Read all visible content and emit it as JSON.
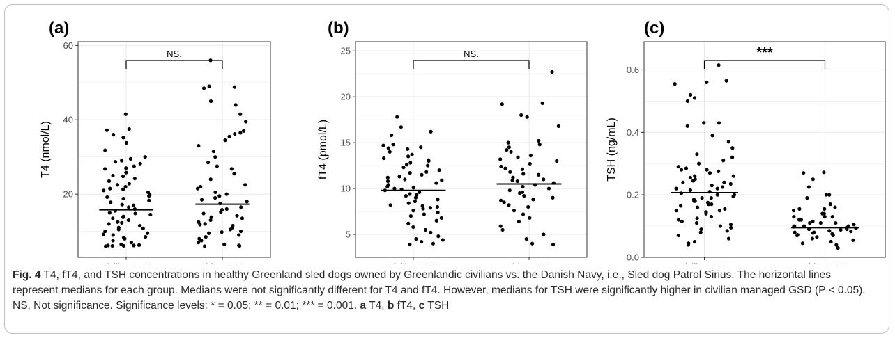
{
  "chart_data": [
    {
      "type": "scatter",
      "panel_label": "(a)",
      "ylabel": "T4 (nmol/L)",
      "categories": [
        "Civilian GSD",
        "Sirius GSD"
      ],
      "ylim": [
        3,
        61
      ],
      "yticks": [
        20,
        40,
        60
      ],
      "grid": true,
      "medians": [
        15.8,
        17.3
      ],
      "significance": "NS.",
      "series": [
        {
          "values": [
            41.5,
            37.5,
            37.2,
            36.0,
            35.2,
            33.8,
            31.8,
            30.0,
            29.5,
            29.0,
            28.7,
            28.2,
            27.5,
            26.8,
            25.8,
            25.0,
            24.2,
            23.5,
            22.8,
            22.0,
            21.5,
            21.0,
            20.5,
            19.8,
            19.2,
            18.8,
            18.3,
            17.8,
            17.2,
            16.5,
            16.0,
            15.5,
            15.0,
            14.5,
            14.0,
            13.5,
            13.0,
            12.5,
            12.0,
            11.5,
            11.0,
            10.5,
            10.0,
            9.5,
            9.0,
            8.5,
            8.0,
            7.5,
            7.0,
            6.5,
            6.3,
            6.2,
            6.2,
            6.1,
            6.1,
            6.0,
            9.2,
            12.3,
            14.8,
            17.0,
            19.5,
            22.5,
            24.8,
            27.0,
            13.8,
            10.8,
            8.3,
            21.3
          ]
        },
        {
          "values": [
            56.0,
            49.0,
            48.8,
            48.5,
            45.0,
            44.0,
            41.5,
            39.5,
            37.0,
            36.5,
            36.2,
            35.5,
            34.5,
            33.0,
            31.5,
            30.0,
            28.5,
            27.5,
            26.8,
            25.5,
            24.0,
            22.5,
            21.5,
            20.5,
            20.0,
            19.5,
            18.5,
            18.0,
            17.5,
            16.5,
            16.0,
            15.2,
            14.8,
            14.2,
            13.5,
            13.0,
            12.5,
            12.0,
            11.5,
            11.0,
            10.5,
            10.0,
            9.5,
            9.0,
            8.5,
            8.0,
            7.5,
            7.0,
            6.5,
            6.2,
            6.1,
            6.0,
            15.8,
            11.8,
            13.8,
            9.8,
            22.0,
            19.0
          ]
        }
      ]
    },
    {
      "type": "scatter",
      "panel_label": "(b)",
      "ylabel": "fT4 (pmol/L)",
      "categories": [
        "Civilian GSD",
        "Sirius GSD"
      ],
      "ylim": [
        2.5,
        26
      ],
      "yticks": [
        5,
        10,
        15,
        20,
        25
      ],
      "grid": true,
      "medians": [
        9.8,
        10.5
      ],
      "significance": "NS.",
      "series": [
        {
          "values": [
            17.8,
            16.7,
            16.2,
            15.8,
            14.8,
            14.7,
            14.5,
            14.4,
            14.3,
            14.0,
            13.7,
            13.5,
            13.3,
            13.0,
            12.8,
            12.5,
            12.3,
            12.0,
            11.8,
            11.5,
            11.3,
            11.0,
            10.8,
            10.6,
            10.4,
            10.2,
            10.0,
            9.9,
            9.8,
            9.6,
            9.4,
            9.2,
            9.0,
            8.8,
            8.6,
            8.4,
            8.2,
            8.0,
            7.8,
            7.6,
            7.4,
            7.2,
            7.0,
            6.8,
            6.5,
            6.2,
            5.8,
            5.5,
            5.2,
            4.8,
            4.5,
            4.4,
            4.2,
            4.0,
            3.9,
            11.2,
            10.9,
            9.3,
            8.1,
            12.6,
            13.1,
            7.9,
            10.1,
            11.7
          ]
        },
        {
          "values": [
            22.7,
            19.3,
            19.2,
            18.0,
            17.8,
            16.8,
            15.2,
            15.0,
            14.8,
            14.5,
            14.0,
            13.6,
            13.4,
            13.2,
            13.0,
            12.7,
            12.4,
            12.1,
            11.8,
            11.5,
            11.2,
            11.0,
            10.8,
            10.6,
            10.4,
            10.2,
            10.0,
            9.8,
            9.5,
            9.2,
            9.0,
            8.8,
            8.5,
            8.2,
            8.0,
            7.6,
            7.2,
            6.8,
            6.4,
            5.9,
            5.5,
            5.0,
            4.5,
            4.0,
            3.9,
            12.2,
            11.6,
            10.9,
            9.6,
            8.7,
            14.2
          ]
        }
      ]
    },
    {
      "type": "scatter",
      "panel_label": "(c)",
      "ylabel": "TSH (ng/mL)",
      "categories": [
        "Civilian GSD",
        "Sirius GSD"
      ],
      "ylim": [
        0,
        0.69
      ],
      "yticks": [
        0.0,
        0.2,
        0.4,
        0.6
      ],
      "tick_labels": [
        "0.0",
        "0.2",
        "0.4",
        "0.6"
      ],
      "grid": true,
      "medians": [
        0.207,
        0.095
      ],
      "significance": "***",
      "series": [
        {
          "values": [
            0.615,
            0.565,
            0.555,
            0.56,
            0.52,
            0.51,
            0.5,
            0.43,
            0.43,
            0.42,
            0.39,
            0.37,
            0.35,
            0.33,
            0.32,
            0.31,
            0.3,
            0.29,
            0.285,
            0.28,
            0.275,
            0.27,
            0.26,
            0.255,
            0.25,
            0.245,
            0.24,
            0.235,
            0.23,
            0.225,
            0.22,
            0.215,
            0.21,
            0.205,
            0.2,
            0.195,
            0.19,
            0.185,
            0.18,
            0.175,
            0.17,
            0.165,
            0.16,
            0.155,
            0.15,
            0.145,
            0.14,
            0.13,
            0.125,
            0.12,
            0.115,
            0.11,
            0.105,
            0.1,
            0.095,
            0.09,
            0.085,
            0.08,
            0.07,
            0.06,
            0.05,
            0.045,
            0.04,
            0.22,
            0.18,
            0.26,
            0.2,
            0.24,
            0.17,
            0.28,
            0.15,
            0.19
          ]
        },
        {
          "values": [
            0.27,
            0.272,
            0.25,
            0.225,
            0.2,
            0.2,
            0.19,
            0.17,
            0.16,
            0.155,
            0.155,
            0.15,
            0.14,
            0.14,
            0.13,
            0.13,
            0.12,
            0.12,
            0.115,
            0.11,
            0.11,
            0.105,
            0.1,
            0.1,
            0.098,
            0.095,
            0.093,
            0.09,
            0.088,
            0.085,
            0.083,
            0.08,
            0.078,
            0.075,
            0.072,
            0.07,
            0.065,
            0.06,
            0.055,
            0.05,
            0.045,
            0.04,
            0.03,
            0.1,
            0.09,
            0.12,
            0.08,
            0.07,
            0.11,
            0.13
          ]
        }
      ]
    }
  ],
  "caption": {
    "label": "Fig. 4",
    "text_1": " T4, fT4, and TSH concentrations in healthy Greenland sled dogs owned by Greenlandic civilians vs. the Danish Navy, i.e., Sled dog Patrol Sirius. The horizontal lines represent medians for each group. Medians were not significantly different for T4 and fT4. However, medians for TSH were significantly higher in civilian managed GSD (P < 0.05). NS, Not significance. Significance levels: * = 0.05; ** = 0.01; *** = 0.001. ",
    "part_a": "a",
    "text_a": " T4, ",
    "part_b": "b",
    "text_b": " fT4, ",
    "part_c": "c",
    "text_c": " TSH"
  },
  "colors": {
    "points": "#000000",
    "grid": "#ebebeb",
    "panel_border": "#333333",
    "axis_text": "#4d4d4d"
  }
}
